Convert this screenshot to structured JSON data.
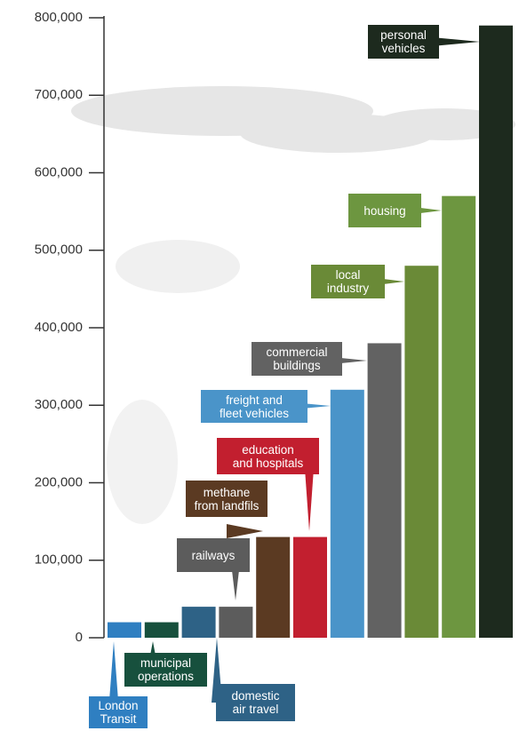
{
  "chart_data": {
    "type": "bar",
    "categories": [
      [
        "London",
        "Transit"
      ],
      [
        "municipal",
        "operations"
      ],
      [
        "domestic",
        "air travel"
      ],
      [
        "railways"
      ],
      [
        "methane",
        "from landfils"
      ],
      [
        "education",
        "and hospitals"
      ],
      [
        "freight and",
        "fleet vehicles"
      ],
      [
        "commercial",
        "buildings"
      ],
      [
        "local",
        "industry"
      ],
      [
        "housing"
      ],
      [
        "personal",
        "vehicles"
      ]
    ],
    "values": [
      20000,
      20000,
      40000,
      40000,
      130000,
      130000,
      320000,
      380000,
      480000,
      570000,
      790000
    ],
    "colors": [
      "#2f7fc1",
      "#17503d",
      "#2e6286",
      "#5c5c5c",
      "#5b3a22",
      "#c21f2f",
      "#4a94c9",
      "#626262",
      "#6a8a37",
      "#6d9640",
      "#1d2a1e"
    ],
    "ylim": [
      0,
      800000
    ],
    "yticks": [
      0,
      {
        "value": 100000,
        "label": "100,000"
      },
      {
        "value": 200000,
        "label": "200,000"
      },
      {
        "value": 300000,
        "label": "300,000"
      },
      {
        "value": 400000,
        "label": "400,000"
      },
      {
        "value": 500000,
        "label": "500,000"
      },
      {
        "value": 600000,
        "label": "600,000"
      },
      {
        "value": 700000,
        "label": "700,000"
      },
      {
        "value": 800000,
        "label": "800,000"
      }
    ]
  }
}
